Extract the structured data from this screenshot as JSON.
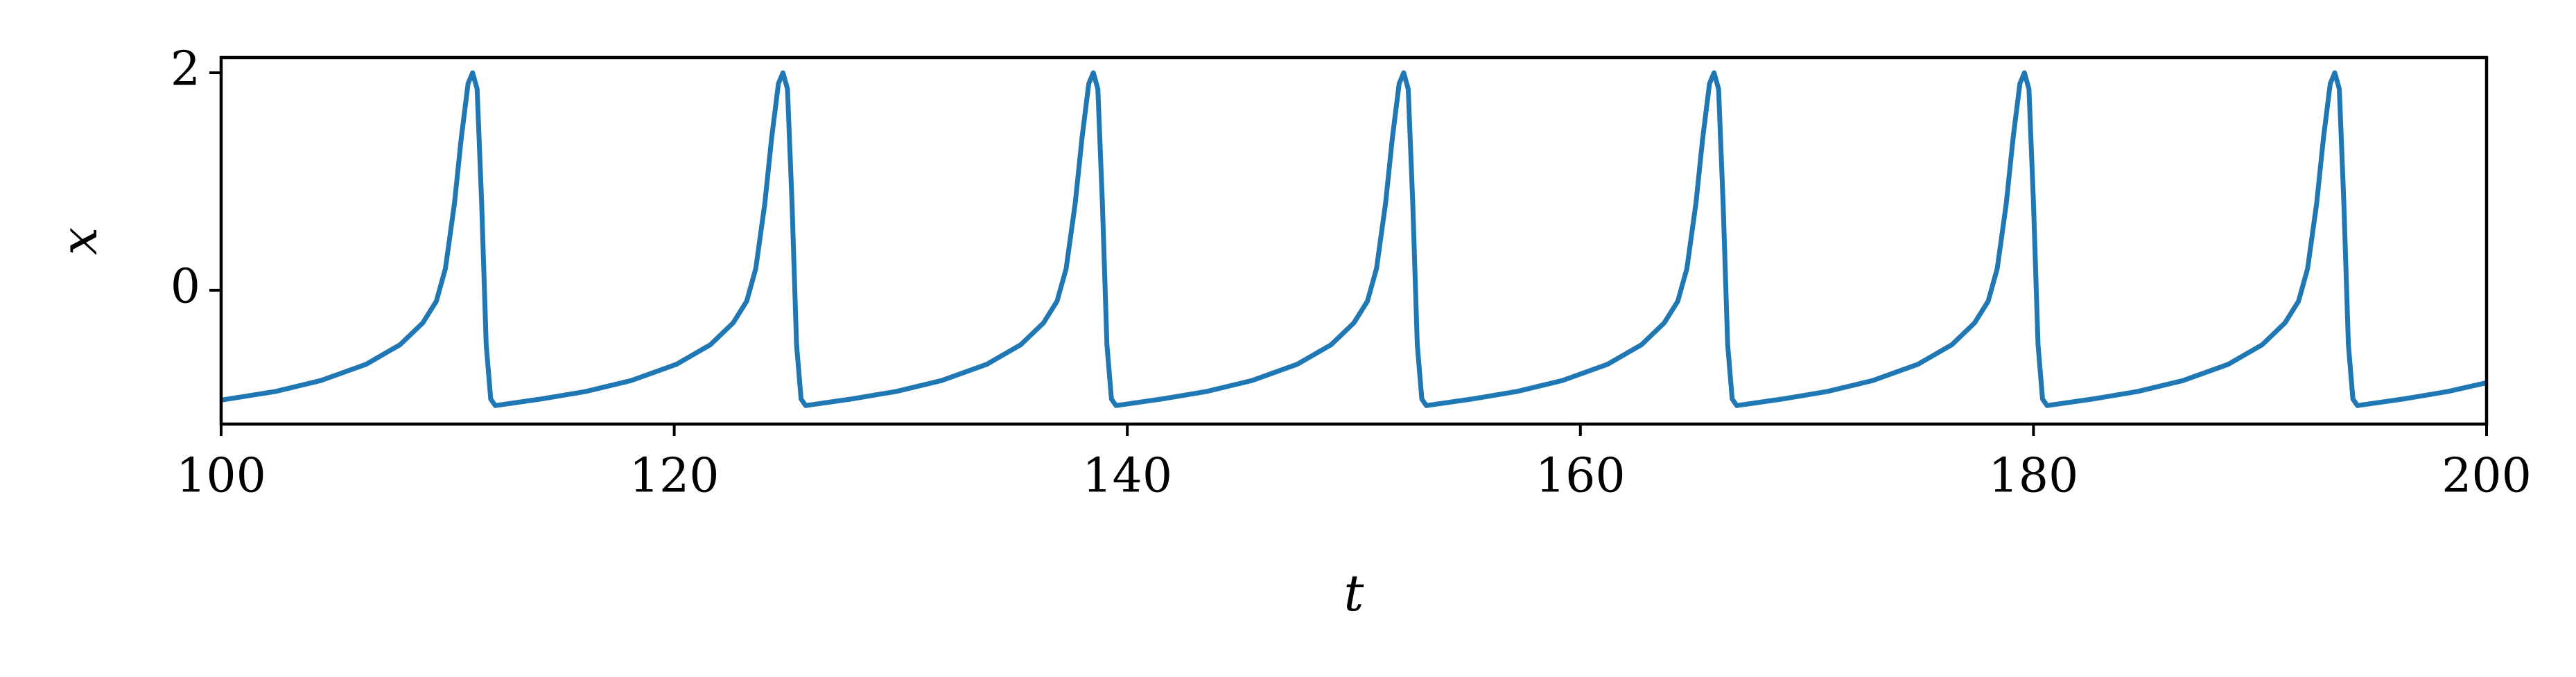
{
  "chart_data": {
    "type": "line",
    "xlabel": "t",
    "ylabel": "x",
    "xlim": [
      100,
      200
    ],
    "ylim": [
      -1.23,
      2.14
    ],
    "xticks": [
      100,
      120,
      140,
      160,
      180,
      200
    ],
    "yticks": [
      0,
      2
    ],
    "series": [
      {
        "color": "#1f77b4",
        "x": [
          100,
          102.4,
          104.4,
          106.4,
          107.9,
          108.9,
          109.5,
          109.9,
          110.3,
          110.6,
          110.9,
          111.1,
          111.3,
          111.5,
          111.7,
          111.9,
          112.1,
          114.1,
          116.1,
          118.1,
          120.1,
          121.6,
          122.6,
          123.2,
          123.6,
          124.0,
          124.3,
          124.6,
          124.8,
          125.0,
          125.2,
          125.4,
          125.6,
          125.8,
          127.8,
          129.8,
          131.8,
          133.8,
          135.3,
          136.3,
          136.9,
          137.3,
          137.7,
          138.0,
          138.3,
          138.5,
          138.7,
          138.9,
          139.1,
          139.3,
          139.5,
          141.5,
          143.5,
          145.5,
          147.5,
          149.0,
          150.0,
          150.6,
          151.0,
          151.4,
          151.7,
          152.0,
          152.2,
          152.4,
          152.6,
          152.8,
          153.0,
          153.2,
          155.2,
          157.2,
          159.2,
          161.2,
          162.7,
          163.7,
          164.3,
          164.7,
          165.1,
          165.4,
          165.7,
          165.9,
          166.1,
          166.3,
          166.5,
          166.7,
          166.9,
          168.9,
          170.9,
          172.9,
          174.9,
          176.4,
          177.4,
          178.0,
          178.4,
          178.8,
          179.1,
          179.4,
          179.6,
          179.8,
          180.0,
          180.2,
          180.4,
          180.6,
          182.6,
          184.6,
          186.6,
          188.6,
          190.1,
          191.1,
          191.7,
          192.1,
          192.5,
          192.8,
          193.1,
          193.3,
          193.5,
          193.7,
          193.9,
          194.1,
          194.3,
          196.3,
          198.3,
          200
        ],
        "values": [
          -1.01,
          -0.93,
          -0.83,
          -0.68,
          -0.5,
          -0.3,
          -0.1,
          0.2,
          0.8,
          1.4,
          1.9,
          2.0,
          1.85,
          0.8,
          -0.5,
          -1.0,
          -1.06,
          -1.0,
          -0.93,
          -0.83,
          -0.68,
          -0.5,
          -0.3,
          -0.1,
          0.2,
          0.8,
          1.4,
          1.9,
          2.0,
          1.85,
          0.8,
          -0.5,
          -1.0,
          -1.06,
          -1.0,
          -0.93,
          -0.83,
          -0.68,
          -0.5,
          -0.3,
          -0.1,
          0.2,
          0.8,
          1.4,
          1.9,
          2.0,
          1.85,
          0.8,
          -0.5,
          -1.0,
          -1.06,
          -1.0,
          -0.93,
          -0.83,
          -0.68,
          -0.5,
          -0.3,
          -0.1,
          0.2,
          0.8,
          1.4,
          1.9,
          2.0,
          1.85,
          0.8,
          -0.5,
          -1.0,
          -1.06,
          -1.0,
          -0.93,
          -0.83,
          -0.68,
          -0.5,
          -0.3,
          -0.1,
          0.2,
          0.8,
          1.4,
          1.9,
          2.0,
          1.85,
          0.8,
          -0.5,
          -1.0,
          -1.06,
          -1.0,
          -0.93,
          -0.83,
          -0.68,
          -0.5,
          -0.3,
          -0.1,
          0.2,
          0.8,
          1.4,
          1.9,
          2.0,
          1.85,
          0.8,
          -0.5,
          -1.0,
          -1.06,
          -1.0,
          -0.93,
          -0.83,
          -0.68,
          -0.5,
          -0.3,
          -0.1,
          0.2,
          0.8,
          1.4,
          1.9,
          2.0,
          1.85,
          0.8,
          -0.5,
          -1.0,
          -1.06,
          -1.0,
          -0.93,
          -0.85
        ]
      }
    ]
  }
}
